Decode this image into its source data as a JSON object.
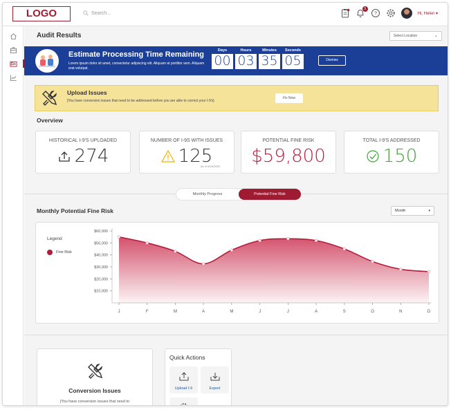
{
  "header": {
    "logo": "LOGO",
    "search_placeholder": "Search...",
    "notification_count": "3",
    "user_greeting": "Hi, Helen",
    "user_chevron": "▾"
  },
  "sidebar": {
    "items": [
      {
        "name": "home-icon"
      },
      {
        "name": "briefcase-icon"
      },
      {
        "name": "id-card-icon",
        "active": true
      },
      {
        "name": "analytics-icon"
      }
    ]
  },
  "page": {
    "title": "Audit Results",
    "location_placeholder": "Select Location"
  },
  "banner": {
    "title": "Estimate Processing Time Remaining",
    "text": "Lorem ipsum dolor sit amet, consectetur adipiscing elit. Aliquam at porttitor sem.  Aliquam erat volutpat.",
    "countdown": [
      {
        "label": "Days",
        "value": "00"
      },
      {
        "label": "Hours",
        "value": "03"
      },
      {
        "label": "Minutes",
        "value": "35"
      },
      {
        "label": "Seconds",
        "value": "05"
      }
    ],
    "dismiss_label": "Dismiss",
    "color": "#1b3f97"
  },
  "alert": {
    "title": "Upload Issues",
    "text": "[You have conversion issues that need to be addressed before you are able to correct your I-9's]",
    "button": "Fix Now"
  },
  "overview": {
    "title": "Overview",
    "stats": [
      {
        "label": "HISTORICAL I-9'S UPLOADED",
        "value": "274",
        "icon": "upload-icon",
        "color": "#333333"
      },
      {
        "label": "NUMBER OF I-9S WITH ISSUES",
        "value": "125",
        "icon": "warning-icon",
        "color": "#333333",
        "sub": "As of 9/24/2020"
      },
      {
        "label": "POTENTIAL FINE RISK",
        "value": "$59,800",
        "color": "#c4173b"
      },
      {
        "label": "TOTAL I-9'S ADDRESSED",
        "value": "150",
        "icon": "check-circle-icon",
        "color": "#3fa535"
      }
    ]
  },
  "tabs": {
    "items": [
      "Monthly Progress",
      "Potential Fine Risk"
    ],
    "active": 1
  },
  "chart_section": {
    "title": "Monthly Potential Fine Risk",
    "period_select": "Month",
    "legend_title": "Legend",
    "series_name": "Fine Risk"
  },
  "chart_data": {
    "type": "area",
    "title": "Monthly Potential Fine Risk",
    "xlabel": "",
    "ylabel": "",
    "categories": [
      "J",
      "F",
      "M",
      "A",
      "M",
      "J",
      "J",
      "A",
      "S",
      "O",
      "N",
      "D"
    ],
    "y_ticks": [
      "$10,000",
      "$20,000",
      "$30,000",
      "$40,000",
      "$50,000",
      "$60,000"
    ],
    "ylim": [
      0,
      60000
    ],
    "series": [
      {
        "name": "Fine Risk",
        "color": "#b01d3a",
        "values": [
          55000,
          50000,
          43000,
          32500,
          44000,
          52000,
          53500,
          52000,
          45000,
          34500,
          28000,
          26000
        ]
      }
    ],
    "legend": "left",
    "grid": false
  },
  "bottom": {
    "conversion_title": "Conversion Issues",
    "conversion_text": "[You have conversion issues that need to",
    "quick_actions_title": "Quick Actions",
    "quick_actions": [
      {
        "label": "Upload I-9",
        "icon": "upload-icon"
      },
      {
        "label": "Export",
        "icon": "export-icon"
      }
    ]
  }
}
